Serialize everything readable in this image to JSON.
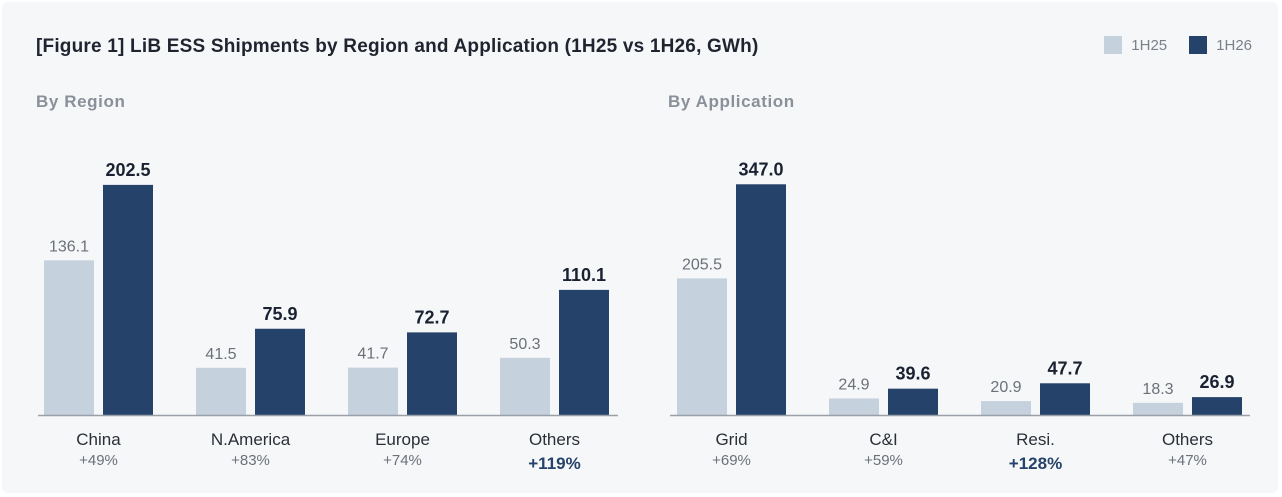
{
  "title": "[Figure 1] LiB ESS Shipments by Region and Application (1H25 vs 1H26, GWh)",
  "legend": {
    "series_1": "1H25",
    "series_2": "1H26"
  },
  "colors": {
    "1H25": "#c5d1dd",
    "1H26": "#25436a",
    "value_1H25": "#6b7079",
    "value_1H26": "#1a2232",
    "growth_normal": "#6b7079",
    "growth_highlight": "#25436a",
    "axis": "#9aa0a8"
  },
  "chart_data": [
    {
      "type": "bar",
      "panel_title": "By Region",
      "categories": [
        "China",
        "N.America",
        "Europe",
        "Others"
      ],
      "growth_labels": [
        "+49%",
        "+83%",
        "+74%",
        "+119%"
      ],
      "growth_highlight": [
        false,
        false,
        false,
        true
      ],
      "series": [
        {
          "name": "1H25",
          "values": [
            136.1,
            41.5,
            41.7,
            50.3
          ],
          "labels": [
            "136.1",
            "41.5",
            "41.7",
            "50.3"
          ]
        },
        {
          "name": "1H26",
          "values": [
            202.5,
            75.9,
            72.7,
            110.1
          ],
          "labels": [
            "202.5",
            "75.9",
            "72.7",
            "110.1"
          ]
        }
      ],
      "xlabel": "",
      "ylabel": "",
      "ylim": [
        0,
        220
      ],
      "grid": false,
      "legend": "top-right"
    },
    {
      "type": "bar",
      "panel_title": "By Application",
      "categories": [
        "Grid",
        "C&I",
        "Resi.",
        "Others"
      ],
      "growth_labels": [
        "+69%",
        "+59%",
        "+128%",
        "+47%"
      ],
      "growth_highlight": [
        false,
        false,
        true,
        false
      ],
      "series": [
        {
          "name": "1H25",
          "values": [
            205.5,
            24.9,
            20.9,
            18.3
          ],
          "labels": [
            "205.5",
            "24.9",
            "20.9",
            "18.3"
          ]
        },
        {
          "name": "1H26",
          "values": [
            347.0,
            39.6,
            47.7,
            26.9
          ],
          "labels": [
            "347.0",
            "39.6",
            "47.7",
            "26.9"
          ]
        }
      ],
      "xlabel": "",
      "ylabel": "",
      "ylim": [
        0,
        376
      ],
      "grid": false,
      "legend": "top-right"
    }
  ]
}
